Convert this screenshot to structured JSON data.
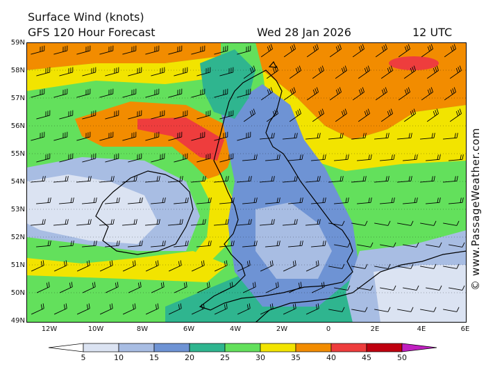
{
  "header": {
    "title": "Surface Wind (knots)",
    "subtitle": "GFS 120 Hour Forecast",
    "date": "Wed 28 Jan 2026",
    "time": "12 UTC"
  },
  "credit": "© www.PassageWeather.com",
  "map": {
    "lat_labels": [
      "59N",
      "58N",
      "57N",
      "56N",
      "55N",
      "54N",
      "53N",
      "52N",
      "51N",
      "50N",
      "49N"
    ],
    "lon_labels": [
      "12W",
      "10W",
      "8W",
      "6W",
      "4W",
      "2W",
      "0",
      "2E",
      "4E",
      "6E"
    ],
    "lon_range": [
      -13,
      6
    ],
    "lat_range": [
      49,
      59
    ],
    "land_color": "#e8ecf5",
    "coast_color": "#000000"
  },
  "colorbar": {
    "ticks": [
      "5",
      "10",
      "15",
      "20",
      "25",
      "30",
      "35",
      "40",
      "45",
      "50"
    ],
    "colors": [
      "#ffffff",
      "#dbe3f2",
      "#a8bde3",
      "#6e93d4",
      "#2fb58f",
      "#63e05c",
      "#f2e400",
      "#f28c00",
      "#ee3d3d",
      "#bf0010",
      "#c020c0"
    ]
  }
}
